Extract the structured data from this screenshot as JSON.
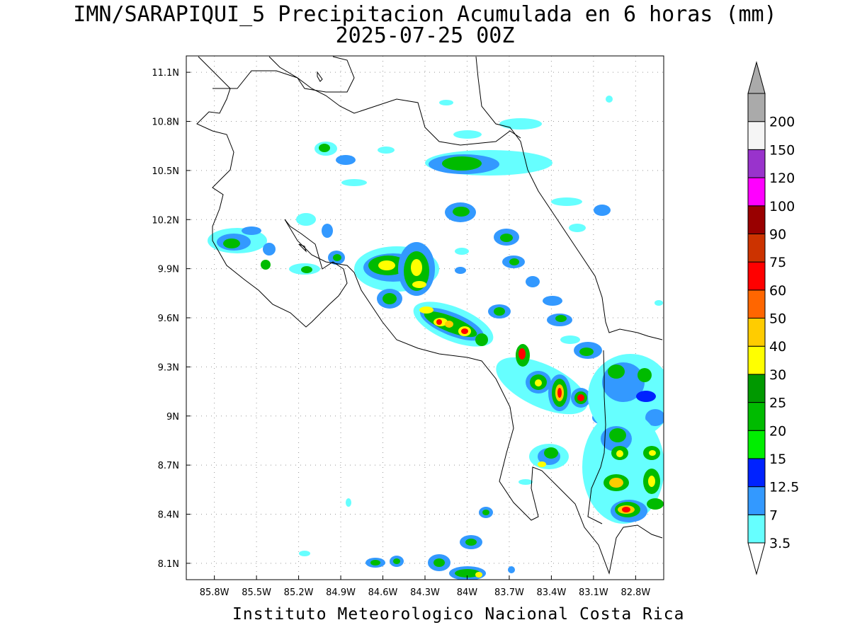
{
  "title_line1": "IMN/SARAPIQUI_5 Precipitacion Acumulada en 6 horas (mm)",
  "title_line2": "2025-07-25 00Z",
  "footer": "Instituto Meteorologico Nacional Costa Rica",
  "map": {
    "lon_range": [
      -86.0,
      -82.6
    ],
    "lat_range": [
      8.0,
      11.2
    ],
    "lon_ticks": [
      "85.8W",
      "85.5W",
      "85.2W",
      "84.9W",
      "84.6W",
      "84.3W",
      "84W",
      "83.7W",
      "83.4W",
      "83.1W",
      "82.8W"
    ],
    "lon_values": [
      -85.8,
      -85.5,
      -85.2,
      -84.9,
      -84.6,
      -84.3,
      -84.0,
      -83.7,
      -83.4,
      -83.1,
      -82.8
    ],
    "lat_ticks": [
      "11.1N",
      "10.8N",
      "10.5N",
      "10.2N",
      "9.9N",
      "9.6N",
      "9.3N",
      "9N",
      "8.7N",
      "8.4N",
      "8.1N"
    ],
    "lat_values": [
      11.1,
      10.8,
      10.5,
      10.2,
      9.9,
      9.6,
      9.3,
      9.0,
      8.7,
      8.4,
      8.1
    ],
    "grid": "dotted"
  },
  "colorbar": {
    "labels": [
      "3.5",
      "7",
      "12.5",
      "15",
      "20",
      "25",
      "30",
      "40",
      "50",
      "60",
      "75",
      "90",
      "100",
      "120",
      "150",
      "200"
    ],
    "colors": [
      "#66ffff",
      "#3399ff",
      "#0022ff",
      "#00ee00",
      "#00bb00",
      "#009900",
      "#ffff00",
      "#ffcc00",
      "#ff6600",
      "#ff0000",
      "#cc3300",
      "#990000",
      "#ff00ff",
      "#9933cc",
      "#f5f5f5",
      "#aaaaaa"
    ]
  },
  "rain_cells": [
    {
      "lon": -84.6,
      "lat": 9.98,
      "level": 5
    },
    {
      "lon": -84.28,
      "lat": 9.96,
      "level": 6
    },
    {
      "lon": -84.05,
      "lat": 9.55,
      "level": 7
    },
    {
      "lon": -84.17,
      "lat": 9.62,
      "level": 7
    },
    {
      "lon": -83.55,
      "lat": 9.42,
      "level": 4
    },
    {
      "lon": -83.28,
      "lat": 9.2,
      "level": 7
    },
    {
      "lon": -83.1,
      "lat": 9.15,
      "level": 7
    },
    {
      "lon": -83.4,
      "lat": 9.25,
      "level": 5
    },
    {
      "lon": -82.85,
      "lat": 8.45,
      "level": 7
    },
    {
      "lon": -82.85,
      "lat": 8.62,
      "level": 5
    },
    {
      "lon": -82.75,
      "lat": 8.82,
      "level": 5
    },
    {
      "lon": -82.65,
      "lat": 8.6,
      "level": 4
    },
    {
      "lon": -83.98,
      "lat": 10.65,
      "level": 3
    },
    {
      "lon": -85.75,
      "lat": 10.12,
      "level": 4
    },
    {
      "lon": -84.48,
      "lat": 9.75,
      "level": 4
    },
    {
      "lon": -83.55,
      "lat": 10.15,
      "level": 3
    },
    {
      "lon": -83.35,
      "lat": 8.78,
      "level": 3
    },
    {
      "lon": -84.0,
      "lat": 10.32,
      "level": 3
    },
    {
      "lon": -82.95,
      "lat": 9.42,
      "level": 3
    },
    {
      "lon": -82.7,
      "lat": 9.12,
      "level": 3
    }
  ]
}
